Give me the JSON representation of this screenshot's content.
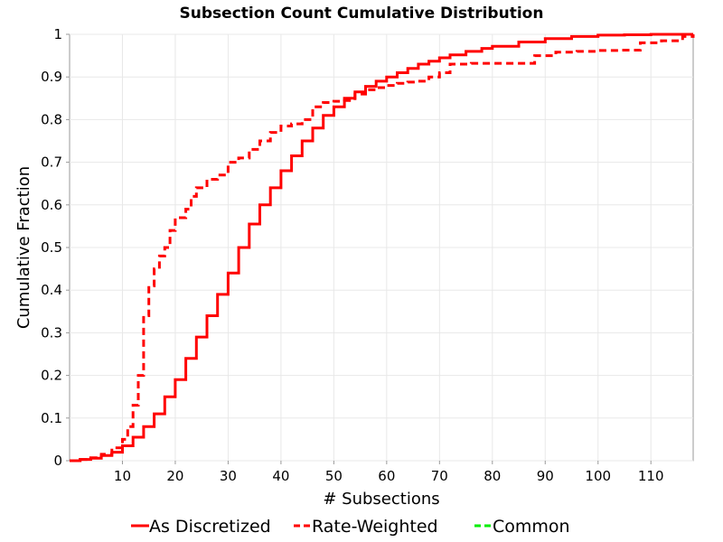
{
  "chart_data": {
    "type": "line",
    "title": "Subsection Count Cumulative Distribution",
    "xlabel": "# Subsections",
    "ylabel": "Cumulative Fraction",
    "xlim": [
      0,
      118
    ],
    "ylim": [
      0,
      1
    ],
    "x_ticks": [
      10,
      20,
      30,
      40,
      50,
      60,
      70,
      80,
      90,
      100,
      110
    ],
    "y_ticks": [
      0,
      0.1,
      0.2,
      0.3,
      0.4,
      0.5,
      0.6,
      0.7,
      0.8,
      0.9,
      1
    ],
    "y_tick_labels": [
      "0",
      "0.1",
      "0.2",
      "0.3",
      "0.4",
      "0.5",
      "0.6",
      "0.7",
      "0.8",
      "0.9",
      "1"
    ],
    "grid": true,
    "legend_position": "bottom",
    "series": [
      {
        "name": "As Discretized",
        "style": "solid",
        "step": true,
        "color": "#ff0000",
        "x": [
          0,
          2,
          4,
          6,
          8,
          10,
          12,
          14,
          16,
          18,
          20,
          22,
          24,
          26,
          28,
          30,
          32,
          34,
          36,
          38,
          40,
          42,
          44,
          46,
          48,
          50,
          52,
          54,
          56,
          58,
          60,
          62,
          64,
          66,
          68,
          70,
          72,
          75,
          78,
          80,
          85,
          90,
          95,
          100,
          105,
          110,
          118
        ],
        "y": [
          0,
          0.003,
          0.006,
          0.012,
          0.02,
          0.035,
          0.055,
          0.08,
          0.11,
          0.15,
          0.19,
          0.24,
          0.29,
          0.34,
          0.39,
          0.44,
          0.5,
          0.555,
          0.6,
          0.64,
          0.68,
          0.715,
          0.75,
          0.78,
          0.81,
          0.83,
          0.85,
          0.865,
          0.878,
          0.89,
          0.9,
          0.91,
          0.92,
          0.93,
          0.937,
          0.945,
          0.952,
          0.96,
          0.967,
          0.972,
          0.982,
          0.99,
          0.995,
          0.998,
          0.999,
          1.0,
          1.0
        ]
      },
      {
        "name": "Rate-Weighted",
        "style": "dashed",
        "step": true,
        "color": "#ff0000",
        "x": [
          0,
          2,
          4,
          6,
          8,
          10,
          11,
          12,
          13,
          14,
          15,
          16,
          17,
          18,
          19,
          20,
          22,
          23,
          24,
          26,
          28,
          30,
          32,
          34,
          36,
          38,
          40,
          42,
          44,
          46,
          48,
          50,
          52,
          54,
          56,
          58,
          60,
          62,
          64,
          66,
          68,
          70,
          72,
          76,
          80,
          84,
          88,
          92,
          96,
          100,
          104,
          108,
          112,
          116,
          118
        ],
        "y": [
          0,
          0.003,
          0.007,
          0.015,
          0.03,
          0.05,
          0.08,
          0.13,
          0.2,
          0.34,
          0.41,
          0.45,
          0.48,
          0.5,
          0.54,
          0.57,
          0.59,
          0.62,
          0.64,
          0.66,
          0.67,
          0.7,
          0.71,
          0.73,
          0.75,
          0.77,
          0.785,
          0.79,
          0.8,
          0.83,
          0.84,
          0.843,
          0.845,
          0.86,
          0.87,
          0.875,
          0.88,
          0.885,
          0.888,
          0.89,
          0.9,
          0.91,
          0.93,
          0.932,
          0.932,
          0.932,
          0.95,
          0.958,
          0.96,
          0.962,
          0.963,
          0.98,
          0.985,
          0.995,
          1.0
        ]
      },
      {
        "name": "Common",
        "style": "dashed",
        "step": true,
        "color": "#00ee00",
        "x": [],
        "y": []
      }
    ]
  }
}
